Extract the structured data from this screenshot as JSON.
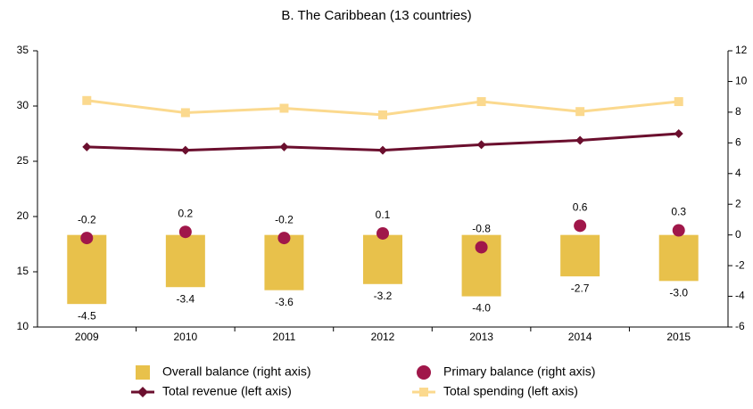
{
  "chart_data": {
    "type": "combo",
    "title": "B. The Caribbean (13 countries)",
    "categories": [
      "2009",
      "2010",
      "2011",
      "2012",
      "2013",
      "2014",
      "2015"
    ],
    "ylim": [
      10,
      35
    ],
    "yticks": [
      10,
      15,
      20,
      25,
      30,
      35
    ],
    "y2lim": [
      -6,
      12
    ],
    "y2ticks": [
      -6,
      -4,
      -2,
      0,
      2,
      4,
      6,
      8,
      10,
      12
    ],
    "series": [
      {
        "name": "Overall balance (right axis)",
        "kind": "bar",
        "axis": "y2",
        "color": "#e8c14b",
        "values": [
          -4.5,
          -3.4,
          -3.6,
          -3.2,
          -4.0,
          -2.7,
          -3.0
        ],
        "value_labels": [
          "-4.5",
          "-3.4",
          "-3.6",
          "-3.2",
          "-4.0",
          "-2.7",
          "-3.0"
        ]
      },
      {
        "name": "Primary balance (right axis)",
        "kind": "dot",
        "axis": "y2",
        "color": "#a0174a",
        "values": [
          -0.2,
          0.2,
          -0.2,
          0.1,
          -0.8,
          0.6,
          0.3
        ],
        "value_labels": [
          "-0.2",
          "0.2",
          "-0.2",
          "0.1",
          "-0.8",
          "0.6",
          "0.3"
        ]
      },
      {
        "name": "Total revenue (left axis)",
        "kind": "line",
        "marker": "diamond",
        "color": "#6b0f2e",
        "values": [
          26.3,
          26.0,
          26.3,
          26.0,
          26.5,
          26.9,
          27.5
        ]
      },
      {
        "name": "Total spending (left axis)",
        "kind": "line",
        "marker": "square",
        "color": "#fbd98e",
        "values": [
          30.5,
          29.4,
          29.8,
          29.2,
          30.4,
          29.5,
          30.4
        ]
      }
    ]
  }
}
